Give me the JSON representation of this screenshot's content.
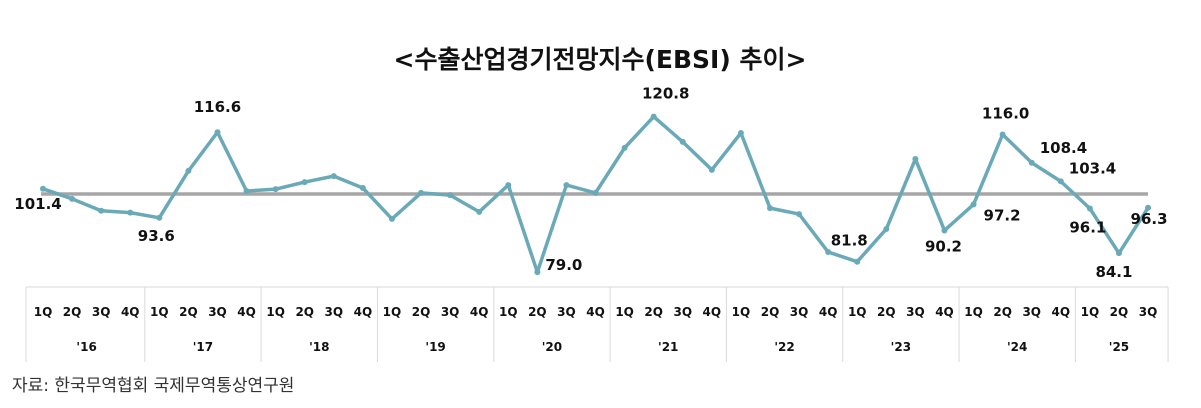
{
  "chart_data": {
    "type": "line",
    "title": "<수출산업경기전망지수(EBSI)  추이>",
    "source": "자료:  한국무역협회  국제무역통상연구원",
    "years": [
      "'16",
      "'17",
      "'18",
      "'19",
      "'20",
      "'21",
      "'22",
      "'23",
      "'24",
      "'25"
    ],
    "quarters": [
      "1Q",
      "2Q",
      "3Q",
      "4Q"
    ],
    "x": [
      "'16 1Q",
      "'16 2Q",
      "'16 3Q",
      "'16 4Q",
      "'17 1Q",
      "'17 2Q",
      "'17 3Q",
      "'17 4Q",
      "'18 1Q",
      "'18 2Q",
      "'18 3Q",
      "'18 4Q",
      "'19 1Q",
      "'19 2Q",
      "'19 3Q",
      "'19 4Q",
      "'20 1Q",
      "'20 2Q",
      "'20 3Q",
      "'20 4Q",
      "'21 1Q",
      "'21 2Q",
      "'21 3Q",
      "'21 4Q",
      "'22 1Q",
      "'22 2Q",
      "'22 3Q",
      "'22 4Q",
      "'23 1Q",
      "'23 2Q",
      "'23 3Q",
      "'23 4Q",
      "'24 1Q",
      "'24 2Q",
      "'24 3Q",
      "'24 4Q",
      "'25 1Q",
      "'25 2Q",
      "'25 3Q"
    ],
    "values": [
      101.4,
      98.7,
      95.5,
      95.0,
      93.6,
      106.2,
      116.6,
      100.8,
      101.3,
      103.2,
      104.8,
      101.6,
      93.3,
      100.3,
      99.7,
      95.2,
      102.4,
      79.0,
      102.4,
      100.3,
      112.4,
      120.8,
      114.0,
      106.5,
      116.4,
      96.2,
      94.6,
      84.4,
      81.8,
      90.6,
      109.4,
      90.2,
      97.2,
      116.0,
      108.4,
      103.4,
      96.1,
      84.1,
      96.3
    ],
    "data_labels": [
      {
        "index": 0,
        "text": "101.4"
      },
      {
        "index": 4,
        "text": "93.6"
      },
      {
        "index": 6,
        "text": "116.6"
      },
      {
        "index": 17,
        "text": "79.0"
      },
      {
        "index": 21,
        "text": "120.8"
      },
      {
        "index": 28,
        "text": "81.8"
      },
      {
        "index": 31,
        "text": "90.2"
      },
      {
        "index": 32,
        "text": "97.2"
      },
      {
        "index": 33,
        "text": "116.0"
      },
      {
        "index": 34,
        "text": "108.4"
      },
      {
        "index": 35,
        "text": "103.4"
      },
      {
        "index": 36,
        "text": "96.1"
      },
      {
        "index": 37,
        "text": "84.1"
      },
      {
        "index": 38,
        "text": "96.3"
      }
    ],
    "reference_line": 100,
    "ylim": [
      75,
      125
    ],
    "grid": false,
    "colors": {
      "line": "#6aa9b8",
      "reference": "#a6a6a6",
      "grid": "#d9d9d9"
    }
  }
}
